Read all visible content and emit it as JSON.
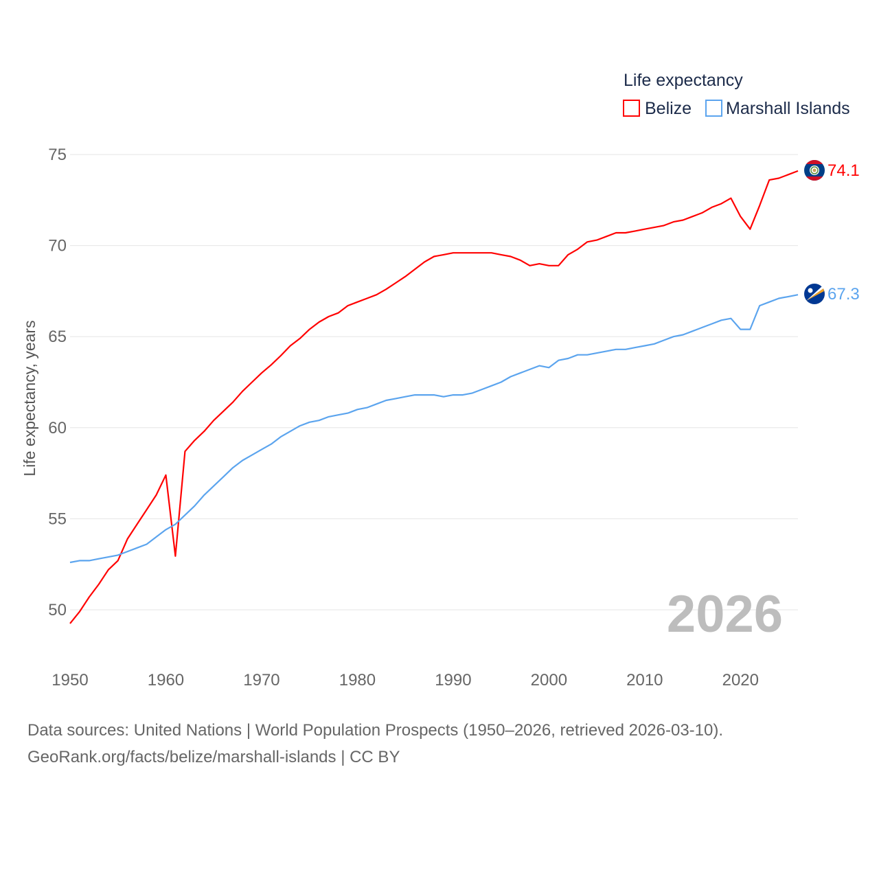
{
  "chart_data": {
    "type": "line",
    "title": "",
    "ylabel": "Life expectancy, years",
    "xlabel": "",
    "xlim": [
      1950,
      2026
    ],
    "ylim": [
      50,
      75
    ],
    "yticks": [
      50,
      55,
      60,
      65,
      70,
      75
    ],
    "xticks": [
      1950,
      1960,
      1970,
      1980,
      1990,
      2000,
      2010,
      2020
    ],
    "grid": true,
    "legend": {
      "title": "Life expectancy",
      "placement": "top-right"
    },
    "current_year_label": "2026",
    "x": [
      1950,
      1951,
      1952,
      1953,
      1954,
      1955,
      1956,
      1957,
      1958,
      1959,
      1960,
      1961,
      1962,
      1963,
      1964,
      1965,
      1966,
      1967,
      1968,
      1969,
      1970,
      1971,
      1972,
      1973,
      1974,
      1975,
      1976,
      1977,
      1978,
      1979,
      1980,
      1981,
      1982,
      1983,
      1984,
      1985,
      1986,
      1987,
      1988,
      1989,
      1990,
      1991,
      1992,
      1993,
      1994,
      1995,
      1996,
      1997,
      1998,
      1999,
      2000,
      2001,
      2002,
      2003,
      2004,
      2005,
      2006,
      2007,
      2008,
      2009,
      2010,
      2011,
      2012,
      2013,
      2014,
      2015,
      2016,
      2017,
      2018,
      2019,
      2020,
      2021,
      2022,
      2023,
      2024,
      2025,
      2026
    ],
    "series": [
      {
        "name": "Belize",
        "color": "#ff0000",
        "end_label": "74.1",
        "values": [
          49.25,
          49.9,
          50.7,
          51.4,
          52.2,
          52.7,
          53.9,
          54.7,
          55.5,
          56.3,
          57.4,
          52.95,
          58.7,
          59.3,
          59.8,
          60.4,
          60.9,
          61.4,
          62.0,
          62.5,
          63.0,
          63.45,
          63.95,
          64.5,
          64.9,
          65.4,
          65.8,
          66.1,
          66.3,
          66.7,
          66.9,
          67.1,
          67.3,
          67.6,
          67.95,
          68.3,
          68.7,
          69.1,
          69.4,
          69.5,
          69.6,
          69.6,
          69.6,
          69.6,
          69.6,
          69.5,
          69.4,
          69.2,
          68.9,
          69.0,
          68.9,
          68.9,
          69.5,
          69.8,
          70.2,
          70.3,
          70.5,
          70.7,
          70.7,
          70.8,
          70.9,
          71.0,
          71.1,
          71.3,
          71.4,
          71.6,
          71.8,
          72.1,
          72.3,
          72.6,
          71.6,
          70.9,
          72.2,
          73.6,
          73.7,
          73.9,
          74.1
        ]
      },
      {
        "name": "Marshall Islands",
        "color": "#5ba4ee",
        "end_label": "67.3",
        "values": [
          52.6,
          52.7,
          52.7,
          52.8,
          52.9,
          53.0,
          53.2,
          53.4,
          53.6,
          54.0,
          54.4,
          54.7,
          55.2,
          55.7,
          56.3,
          56.8,
          57.3,
          57.8,
          58.2,
          58.5,
          58.8,
          59.1,
          59.5,
          59.8,
          60.1,
          60.3,
          60.4,
          60.6,
          60.7,
          60.8,
          61.0,
          61.1,
          61.3,
          61.5,
          61.6,
          61.7,
          61.8,
          61.8,
          61.8,
          61.7,
          61.8,
          61.8,
          61.9,
          62.1,
          62.3,
          62.5,
          62.8,
          63.0,
          63.2,
          63.4,
          63.3,
          63.7,
          63.8,
          64.0,
          64.0,
          64.1,
          64.2,
          64.3,
          64.3,
          64.4,
          64.5,
          64.6,
          64.8,
          65.0,
          65.1,
          65.3,
          65.5,
          65.7,
          65.9,
          66.0,
          65.4,
          65.4,
          66.7,
          66.9,
          67.1,
          67.2,
          67.3
        ]
      }
    ]
  },
  "source": {
    "line1": "Data sources: United Nations | World Population Prospects (1950–2026, retrieved 2026-03-10).",
    "line2": "GeoRank.org/facts/belize/marshall-islands | CC BY"
  }
}
